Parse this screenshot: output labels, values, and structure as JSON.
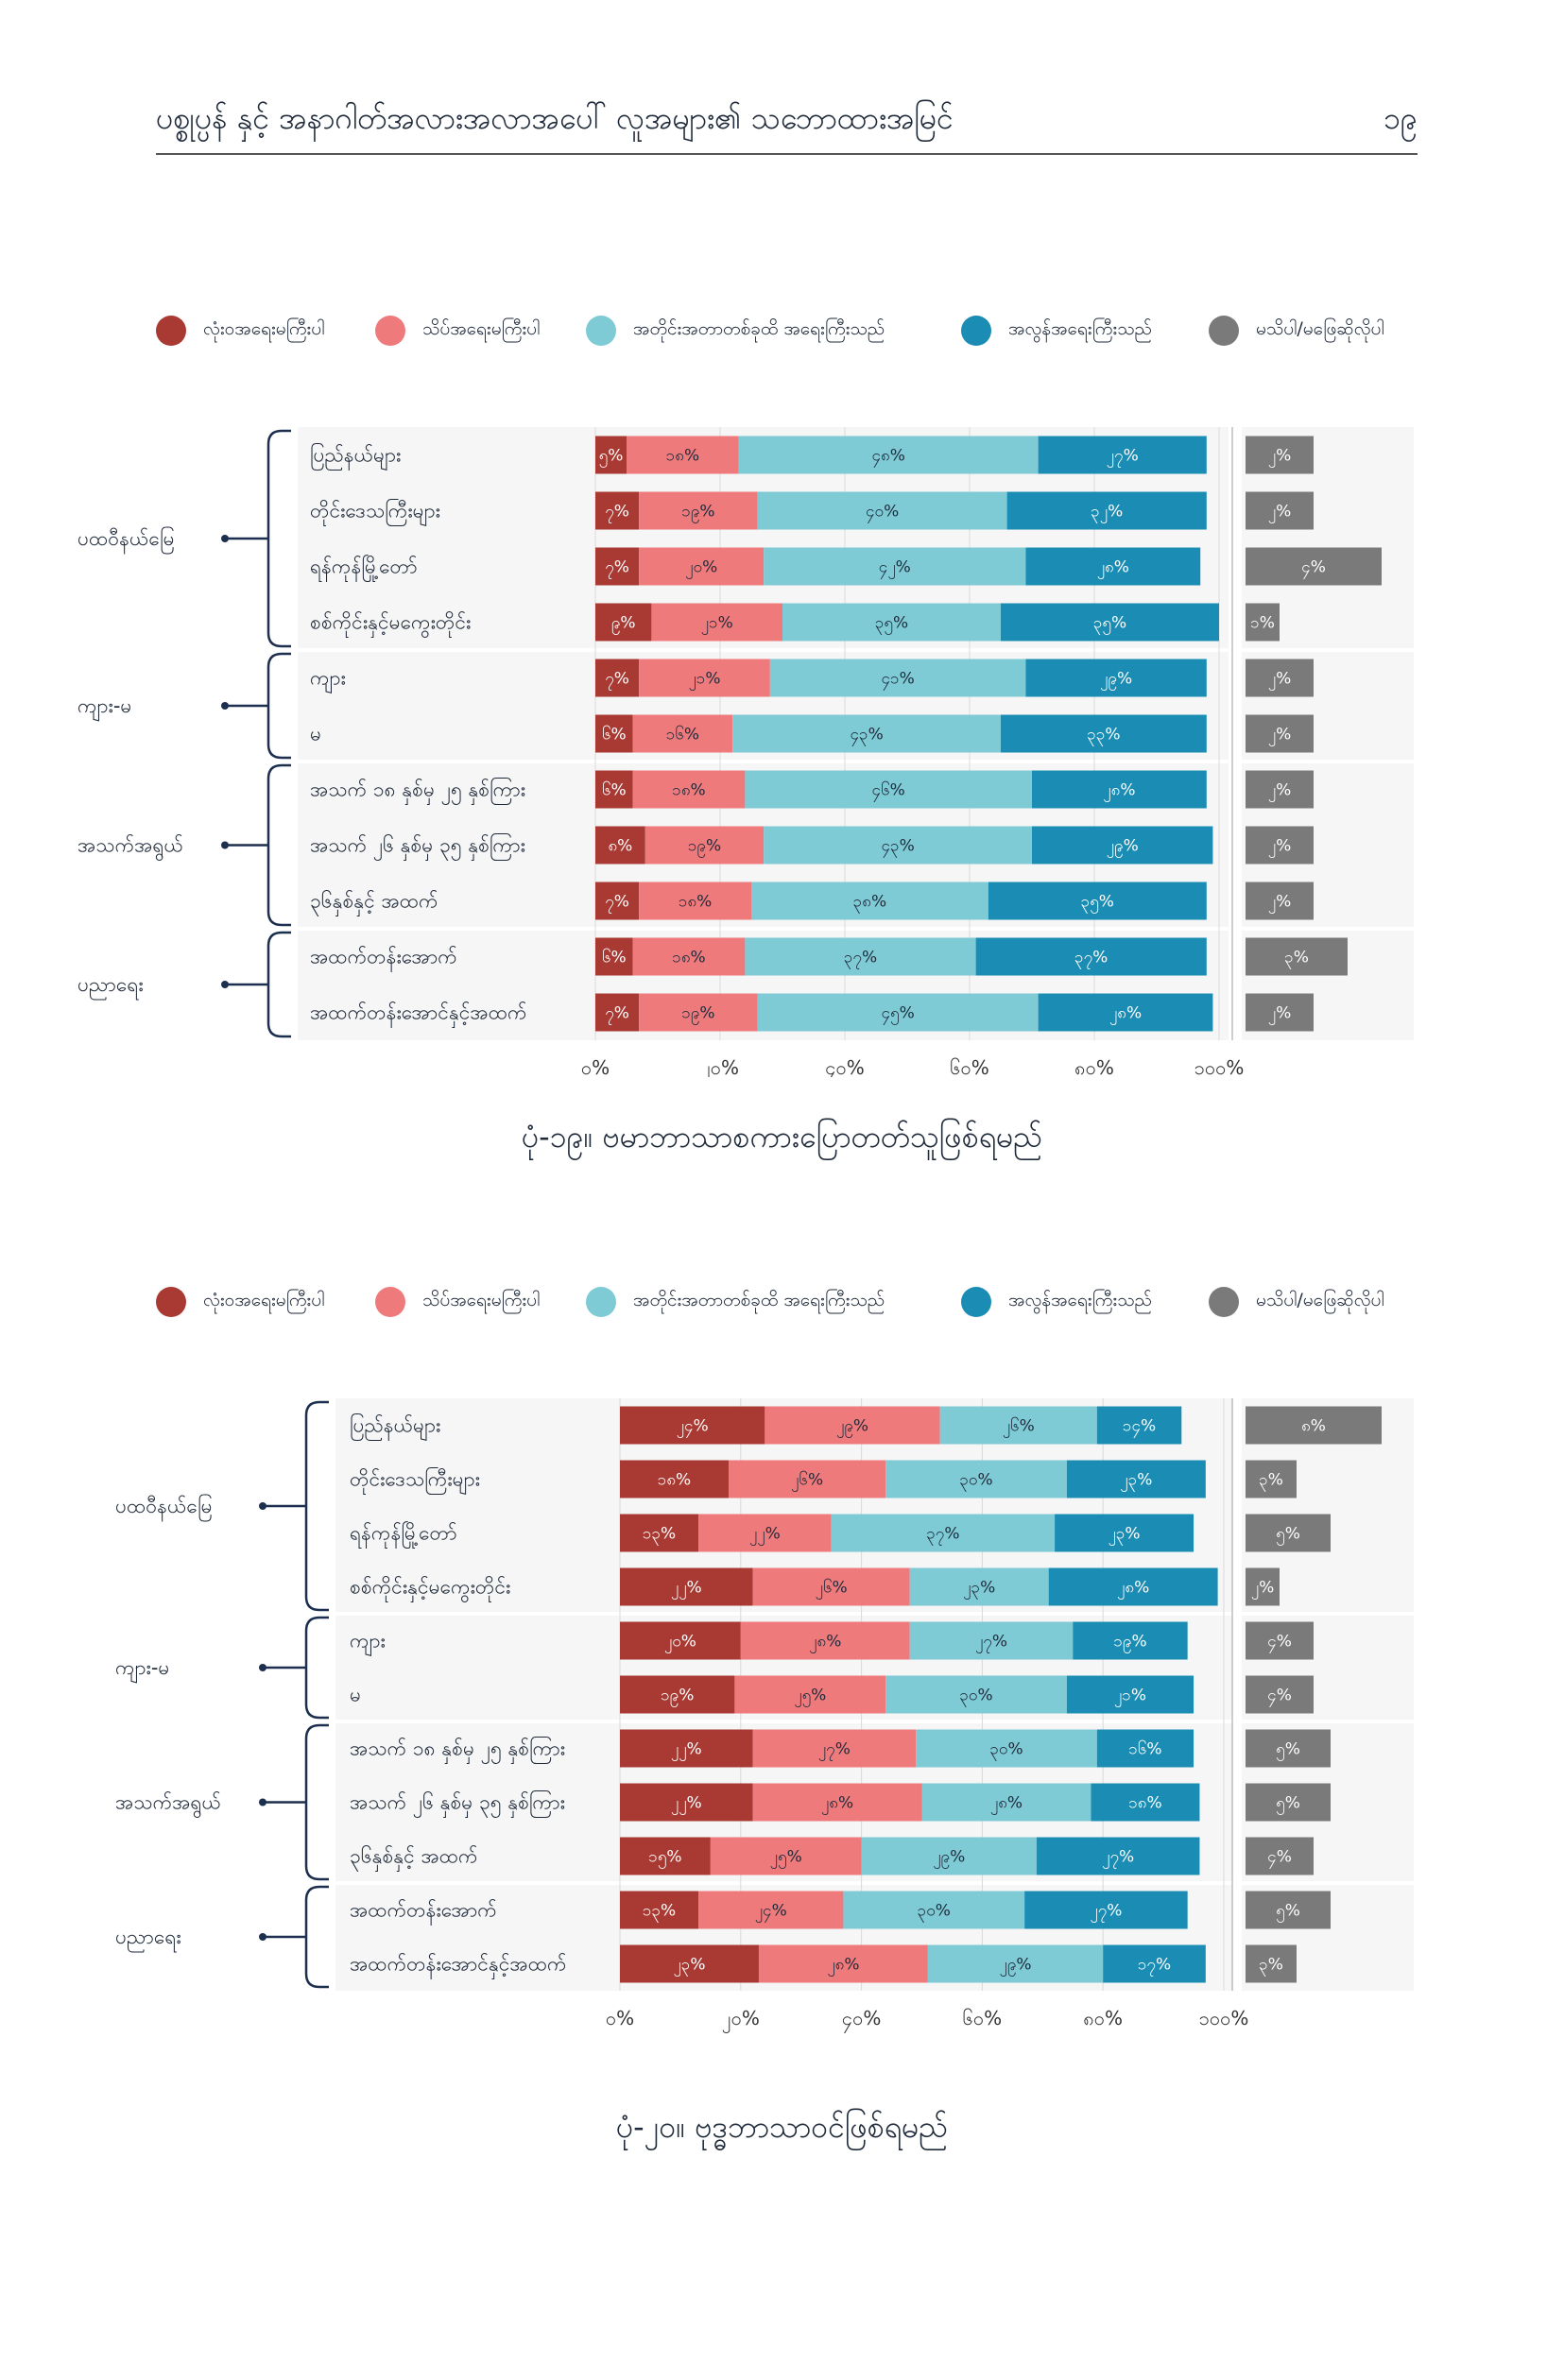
{
  "header": {
    "title": "ပစ္စုပ္ပန် နှင့် အနာဂါတ်အလားအလာအပေါ် လူအများ၏ သဘောထားအမြင်",
    "page_number": "၁၉"
  },
  "legend": [
    {
      "label": "လုံးဝအရေးမကြီးပါ",
      "color": "#a93a33"
    },
    {
      "label": "သိပ်အရေးမကြီးပါ",
      "color": "#ee7a7c"
    },
    {
      "label": "အတိုင်းအတာတစ်ခုထိ အရေးကြီးသည်",
      "color": "#7ecbd6"
    },
    {
      "label": "အလွန်အရေးကြီးသည်",
      "color": "#1b8db4"
    },
    {
      "label": "မသိပါ/မဖြေဆိုလိုပါ",
      "color": "#7a7a7a"
    }
  ],
  "chart_data": [
    {
      "type": "bar",
      "stacked": true,
      "orientation": "horizontal",
      "caption": "ပုံ-၁၉။ ဗမာဘာသာစကားပြောတတ်သူဖြစ်ရမည်",
      "x_tick_labels": [
        "၀%",
        "၂၀%",
        "၄၀%",
        "၆၀%",
        "၈၀%",
        "၁၀၀%"
      ],
      "xlim": [
        0,
        100
      ],
      "groups": [
        {
          "label": "ပထဝီနယ်မြေ",
          "rows": [
            0,
            3
          ]
        },
        {
          "label": "ကျား-မ",
          "rows": [
            4,
            5
          ]
        },
        {
          "label": "အသက်အရွယ်",
          "rows": [
            6,
            8
          ]
        },
        {
          "label": "ပညာရေး",
          "rows": [
            9,
            10
          ]
        }
      ],
      "categories": [
        "ပြည်နယ်များ",
        "တိုင်းဒေသကြီးများ",
        "ရန်ကုန်မြို့တော်",
        "စစ်ကိုင်းနှင့်မကွေးတိုင်း",
        "ကျား",
        "မ",
        "အသက် ၁၈ နှစ်မှ ၂၅ နှစ်ကြား",
        "အသက် ၂၆ နှစ်မှ ၃၅ နှစ်ကြား",
        "၃၆နှစ်နှင့် အထက်",
        "အထက်တန်းအောက်",
        "အထက်တန်းအောင်နှင့်အထက်"
      ],
      "series": [
        {
          "values": [
            5,
            7,
            7,
            9,
            7,
            6,
            6,
            8,
            7,
            6,
            7
          ],
          "labels": [
            "၅%",
            "၇%",
            "၇%",
            "၉%",
            "၇%",
            "၆%",
            "၆%",
            "၈%",
            "၇%",
            "၆%",
            "၇%"
          ]
        },
        {
          "values": [
            18,
            19,
            20,
            21,
            21,
            16,
            18,
            19,
            18,
            18,
            19
          ],
          "labels": [
            "၁၈%",
            "၁၉%",
            "၂၀%",
            "၂၁%",
            "၂၁%",
            "၁၆%",
            "၁၈%",
            "၁၉%",
            "၁၈%",
            "၁၈%",
            "၁၉%"
          ]
        },
        {
          "values": [
            48,
            40,
            42,
            35,
            41,
            43,
            46,
            43,
            38,
            37,
            45
          ],
          "labels": [
            "၄၈%",
            "၄၀%",
            "၄၂%",
            "၃၅%",
            "၄၁%",
            "၄၃%",
            "၄၆%",
            "၄၃%",
            "၃၈%",
            "၃၇%",
            "၄၅%"
          ]
        },
        {
          "values": [
            27,
            32,
            28,
            35,
            29,
            33,
            28,
            29,
            35,
            37,
            28
          ],
          "labels": [
            "၂၇%",
            "၃၂%",
            "၂၈%",
            "၃၅%",
            "၂၉%",
            "၃၃%",
            "၂၈%",
            "၂၉%",
            "၃၅%",
            "၃၇%",
            "၂၈%"
          ]
        }
      ],
      "unknown": {
        "values": [
          2,
          2,
          4,
          1,
          2,
          2,
          2,
          2,
          2,
          3,
          2
        ],
        "labels": [
          "၂%",
          "၂%",
          "၄%",
          "၁%",
          "၂%",
          "၂%",
          "၂%",
          "၂%",
          "၂%",
          "၃%",
          "၂%"
        ]
      }
    },
    {
      "type": "bar",
      "stacked": true,
      "orientation": "horizontal",
      "caption": "ပုံ-၂၀။ ဗုဒ္ဓဘာသာဝင်ဖြစ်ရမည်",
      "x_tick_labels": [
        "၀%",
        "၂၀%",
        "၄၀%",
        "၆၀%",
        "၈၀%",
        "၁၀၀%"
      ],
      "xlim": [
        0,
        100
      ],
      "groups": [
        {
          "label": "ပထဝီနယ်မြေ",
          "rows": [
            0,
            3
          ]
        },
        {
          "label": "ကျား-မ",
          "rows": [
            4,
            5
          ]
        },
        {
          "label": "အသက်အရွယ်",
          "rows": [
            6,
            8
          ]
        },
        {
          "label": "ပညာရေး",
          "rows": [
            9,
            10
          ]
        }
      ],
      "categories": [
        "ပြည်နယ်များ",
        "တိုင်းဒေသကြီးများ",
        "ရန်ကုန်မြို့တော်",
        "စစ်ကိုင်းနှင့်မကွေးတိုင်း",
        "ကျား",
        "မ",
        "အသက် ၁၈ နှစ်မှ ၂၅ နှစ်ကြား",
        "အသက် ၂၆ နှစ်မှ ၃၅ နှစ်ကြား",
        "၃၆နှစ်နှင့် အထက်",
        "အထက်တန်းအောက်",
        "အထက်တန်းအောင်နှင့်အထက်"
      ],
      "series": [
        {
          "values": [
            24,
            18,
            13,
            22,
            20,
            19,
            22,
            22,
            15,
            13,
            23
          ],
          "labels": [
            "၂၄%",
            "၁၈%",
            "၁၃%",
            "၂၂%",
            "၂၀%",
            "၁၉%",
            "၂၂%",
            "၂၂%",
            "၁၅%",
            "၁၃%",
            "၂၃%"
          ]
        },
        {
          "values": [
            29,
            26,
            22,
            26,
            28,
            25,
            27,
            28,
            25,
            24,
            28
          ],
          "labels": [
            "၂၉%",
            "၂၆%",
            "၂၂%",
            "၂၆%",
            "၂၈%",
            "၂၅%",
            "၂၇%",
            "၂၈%",
            "၂၅%",
            "၂၄%",
            "၂၈%"
          ]
        },
        {
          "values": [
            26,
            30,
            37,
            23,
            27,
            30,
            30,
            28,
            29,
            30,
            29
          ],
          "labels": [
            "၂၆%",
            "၃၀%",
            "၃၇%",
            "၂၃%",
            "၂၇%",
            "၃၀%",
            "၃၀%",
            "၂၈%",
            "၂၉%",
            "၃၀%",
            "၂၉%"
          ]
        },
        {
          "values": [
            14,
            23,
            23,
            28,
            19,
            21,
            16,
            18,
            27,
            27,
            17
          ],
          "labels": [
            "၁၄%",
            "၂၃%",
            "၂၃%",
            "၂၈%",
            "၁၉%",
            "၂၁%",
            "၁၆%",
            "၁၈%",
            "၂၇%",
            "၂၇%",
            "၁၇%"
          ]
        }
      ],
      "unknown": {
        "values": [
          8,
          3,
          5,
          2,
          4,
          4,
          5,
          5,
          4,
          5,
          3
        ],
        "labels": [
          "၈%",
          "၃%",
          "၅%",
          "၂%",
          "၄%",
          "၄%",
          "၅%",
          "၅%",
          "၄%",
          "၅%",
          "၃%"
        ]
      }
    }
  ]
}
